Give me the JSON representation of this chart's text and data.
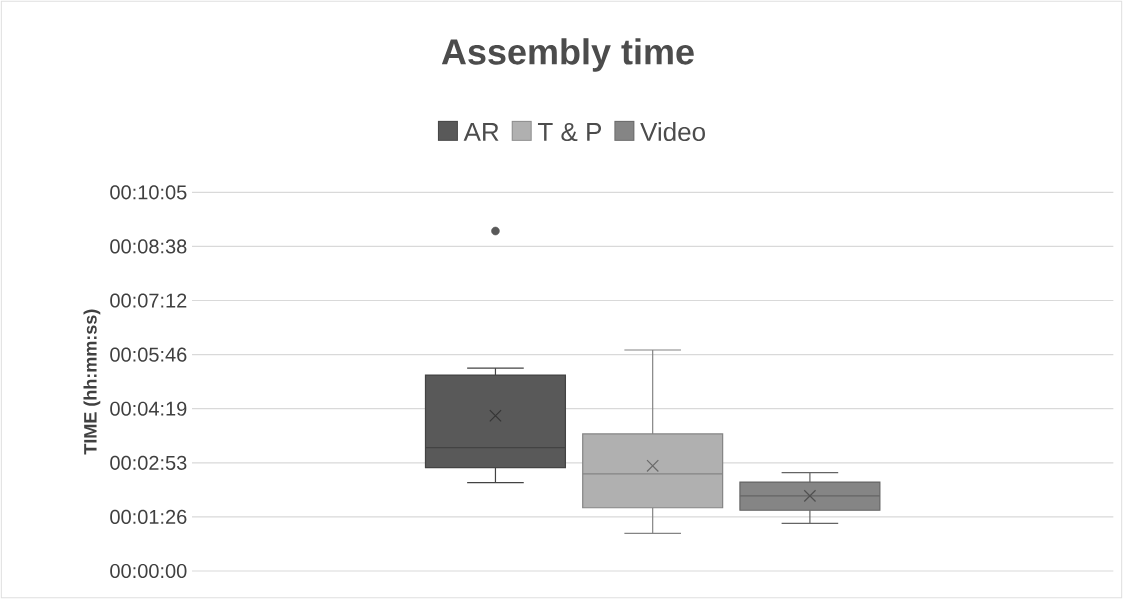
{
  "chart_data": {
    "type": "box",
    "title": "Assembly time",
    "ylabel": "TIME (hh:mm:ss)",
    "categories": [
      null
    ],
    "series": [
      {
        "name": "AR",
        "color": "#595959",
        "boxes": [
          {
            "low": 141,
            "q1": 165,
            "median": 197,
            "q3": 313,
            "high": 324,
            "mean": 248,
            "outliers": [
              543
            ]
          }
        ]
      },
      {
        "name": "T & P",
        "color": "#b0b0b0",
        "boxes": [
          {
            "low": 60,
            "q1": 101,
            "median": 155,
            "q3": 219,
            "high": 353,
            "mean": 168
          }
        ]
      },
      {
        "name": "Video",
        "color": "#858585",
        "boxes": [
          {
            "low": 76,
            "q1": 97,
            "median": 120,
            "q3": 142,
            "high": 157,
            "mean": 120
          }
        ]
      }
    ],
    "ylim": [
      0,
      604.8
    ],
    "yticks": [
      {
        "value": 0,
        "label": "00:00:00"
      },
      {
        "value": 86.4,
        "label": "00:01:26"
      },
      {
        "value": 172.8,
        "label": "00:02:53"
      },
      {
        "value": 259.2,
        "label": "00:04:19"
      },
      {
        "value": 345.6,
        "label": "00:05:46"
      },
      {
        "value": 432,
        "label": "00:07:12"
      },
      {
        "value": 518.4,
        "label": "00:08:38"
      },
      {
        "value": 604.8,
        "label": "00:10:05"
      }
    ],
    "grid": "y",
    "legend": "top"
  }
}
